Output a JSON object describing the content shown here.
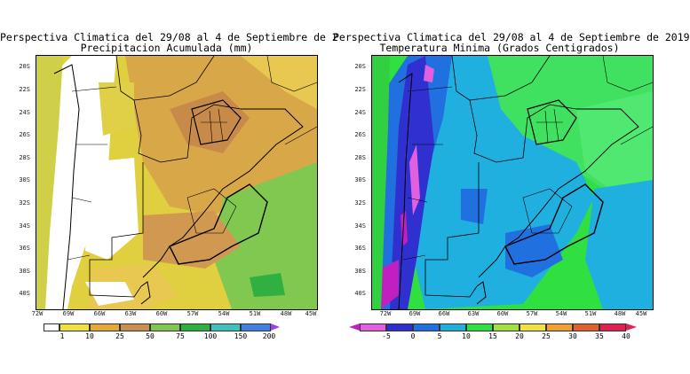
{
  "left_map": {
    "title_line1": "Perspectiva Climatica del 29/08 al 4 de Septiembre de 2",
    "title_line2": "Precipitacion Acumulada (mm)",
    "lat_labels": [
      "20S",
      "22S",
      "24S",
      "26S",
      "28S",
      "30S",
      "32S",
      "34S",
      "36S",
      "38S",
      "40S"
    ],
    "lon_labels": [
      "72W",
      "69W",
      "66W",
      "63W",
      "60W",
      "57W",
      "54W",
      "51W",
      "48W",
      "45W"
    ],
    "colorbar": {
      "labels": [
        "1",
        "10",
        "25",
        "50",
        "75",
        "100",
        "150",
        "200"
      ],
      "colors": [
        "#ffffff",
        "#f0e040",
        "#e8a838",
        "#c89050",
        "#7ec850",
        "#30b040",
        "#40c0c0",
        "#4080e0",
        "#a040e0"
      ]
    }
  },
  "right_map": {
    "title_line1": "Perspectiva Climatica del 29/08 al 4 de Septiembre de 2019",
    "title_line2": "Temperatura Minima (Grados Centigrados)",
    "lat_labels": [
      "20S",
      "22S",
      "24S",
      "26S",
      "28S",
      "30S",
      "32S",
      "34S",
      "36S",
      "38S",
      "40S"
    ],
    "lon_labels": [
      "72W",
      "69W",
      "66W",
      "63W",
      "60W",
      "57W",
      "54W",
      "51W",
      "48W",
      "45W"
    ],
    "colorbar": {
      "labels": [
        "-5",
        "0",
        "5",
        "10",
        "15",
        "20",
        "25",
        "30",
        "35",
        "40"
      ],
      "colors": [
        "#c020c0",
        "#e060e0",
        "#3030d0",
        "#2070e0",
        "#20b0e0",
        "#30e040",
        "#a0e040",
        "#f0e040",
        "#f0a030",
        "#e06030",
        "#e02050"
      ]
    }
  }
}
